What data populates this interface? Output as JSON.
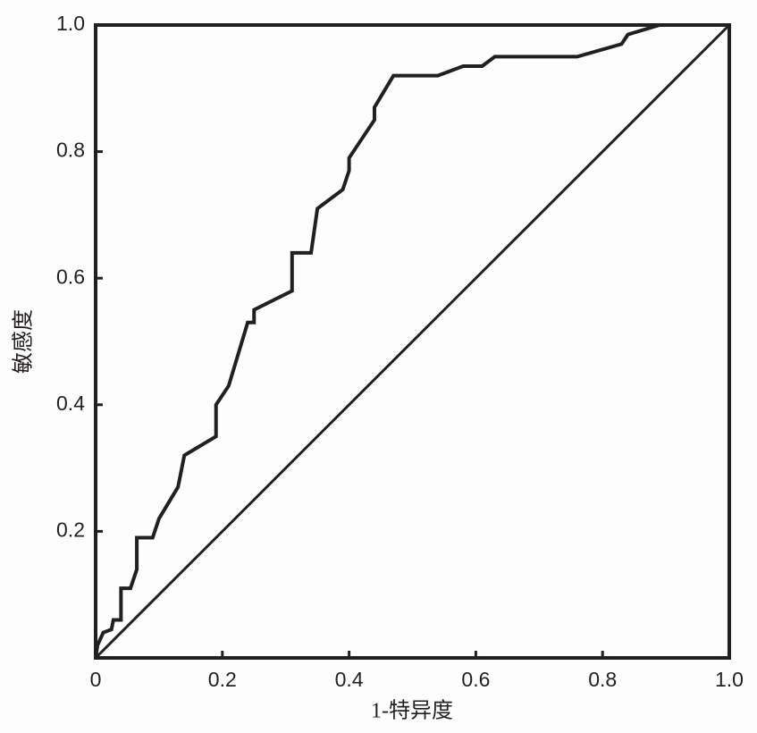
{
  "chart_data": {
    "type": "line",
    "xlabel": "1-特异度",
    "ylabel": "敏感度",
    "xlim": [
      0,
      1
    ],
    "ylim": [
      0,
      1
    ],
    "xticks": [
      0,
      0.2,
      0.4,
      0.6,
      0.8,
      {
        "value": 1,
        "label": "1.0"
      }
    ],
    "yticks": [
      0.2,
      0.4,
      0.6,
      0.8,
      {
        "value": 1,
        "label": "1.0"
      }
    ],
    "diagonal": true,
    "series": [
      {
        "color": "#231f20",
        "x": [
          0,
          0.003,
          0.012,
          0.025,
          0.028,
          0.04,
          0.04,
          0.055,
          0.065,
          0.065,
          0.09,
          0.1,
          0.13,
          0.14,
          0.19,
          0.19,
          0.21,
          0.24,
          0.25,
          0.25,
          0.31,
          0.31,
          0.34,
          0.35,
          0.39,
          0.4,
          0.4,
          0.44,
          0.44,
          0.47,
          0.54,
          0.58,
          0.61,
          0.63,
          0.76,
          0.83,
          0.84,
          0.89,
          1.0
        ],
        "values": [
          0,
          0.02,
          0.04,
          0.045,
          0.06,
          0.06,
          0.11,
          0.11,
          0.14,
          0.19,
          0.19,
          0.22,
          0.27,
          0.32,
          0.35,
          0.4,
          0.43,
          0.53,
          0.53,
          0.55,
          0.58,
          0.64,
          0.64,
          0.71,
          0.74,
          0.77,
          0.79,
          0.85,
          0.87,
          0.92,
          0.92,
          0.935,
          0.935,
          0.95,
          0.95,
          0.97,
          0.985,
          1.0,
          1.0
        ]
      }
    ]
  }
}
